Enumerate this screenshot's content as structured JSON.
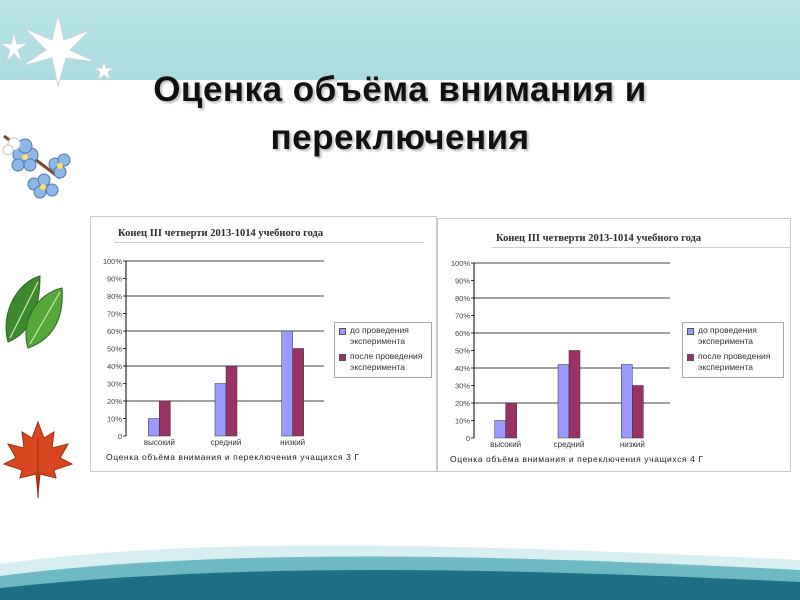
{
  "slide": {
    "title": "Оценка объёма внимания и переключения"
  },
  "colors": {
    "before": "#9999ff",
    "after": "#993366",
    "band": "#a9dcdf"
  },
  "chart_data": [
    {
      "type": "bar",
      "title": "Конец III четверти 2013-1014 учебного года",
      "caption": "Оценка  объёма  внимания  и переключения учащихся 3 Г",
      "categories": [
        "высокий",
        "средний",
        "низкий"
      ],
      "ytick_labels": [
        "0",
        "10%",
        "20%",
        "30%",
        "40%",
        "50%",
        "60%",
        "70%",
        "80%",
        "90%",
        "100%"
      ],
      "ylim": [
        0,
        100
      ],
      "legend_position": "right",
      "series": [
        {
          "name": "до проведения эксперимента",
          "values": [
            10,
            30,
            60
          ]
        },
        {
          "name": "после проведения эксперимента",
          "values": [
            20,
            40,
            50
          ]
        }
      ]
    },
    {
      "type": "bar",
      "title": "Конец III четверти 2013-1014 учебного года",
      "caption": "Оценка  объёма внимания  и переключения учащихся 4 Г",
      "categories": [
        "высокий",
        "средний",
        "низкий"
      ],
      "ytick_labels": [
        "0",
        "10%",
        "20%",
        "30%",
        "40%",
        "50%",
        "60%",
        "70%",
        "80%",
        "90%",
        "100%"
      ],
      "ylim": [
        0,
        100
      ],
      "legend_position": "right",
      "series": [
        {
          "name": "до проведения эксперимента",
          "values": [
            10,
            42,
            42
          ]
        },
        {
          "name": "после проведения эксперимента",
          "values": [
            20,
            50,
            30
          ]
        }
      ]
    }
  ]
}
